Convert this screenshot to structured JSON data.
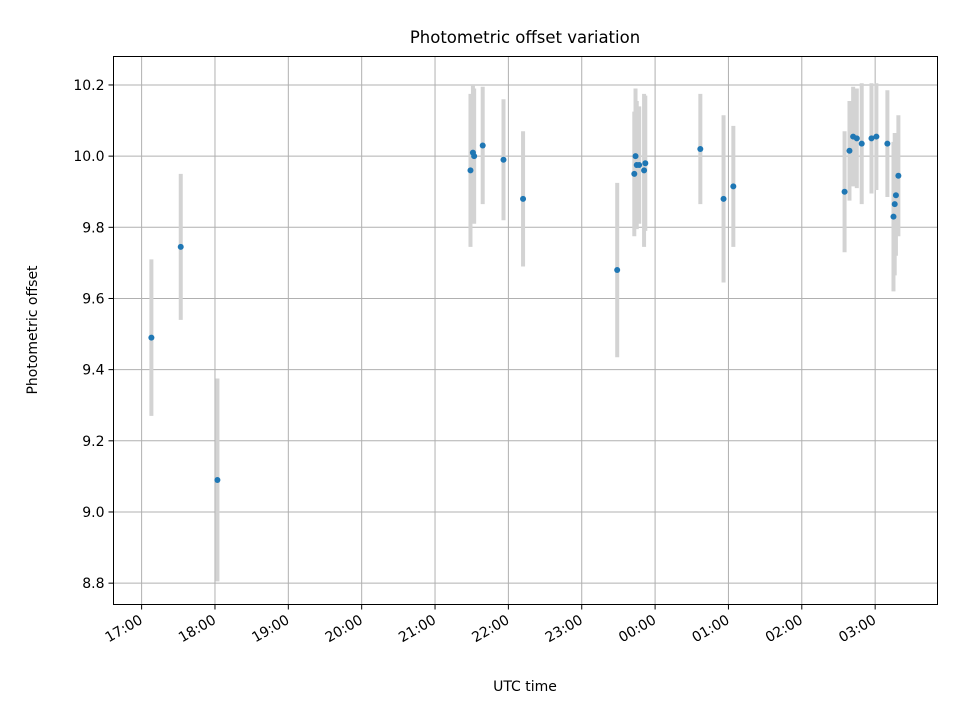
{
  "chart_data": {
    "type": "scatter",
    "title": "Photometric offset variation",
    "xlabel": "UTC time",
    "ylabel": "Photometric offset",
    "x_axis": {
      "type": "time",
      "range": [
        "16:37",
        "03:51"
      ],
      "ticks": [
        "17:00",
        "18:00",
        "19:00",
        "20:00",
        "21:00",
        "22:00",
        "23:00",
        "00:00",
        "01:00",
        "02:00",
        "03:00"
      ],
      "tick_label_rotation_deg": 30
    },
    "y_axis": {
      "range": [
        8.74,
        10.28
      ],
      "ticks": [
        "8.8",
        "9.0",
        "9.2",
        "9.4",
        "9.6",
        "9.8",
        "10.0",
        "10.2"
      ]
    },
    "grid": true,
    "legend": "none",
    "colors": {
      "point": "#1f77b4",
      "error_bar": "#d3d3d3",
      "grid": "#b0b0b0"
    },
    "points": [
      {
        "time": "17:08",
        "y": 9.49,
        "err": 0.22
      },
      {
        "time": "17:32",
        "y": 9.745,
        "err": 0.205
      },
      {
        "time": "18:02",
        "y": 9.09,
        "err": 0.285
      },
      {
        "time": "21:29",
        "y": 9.96,
        "err": 0.215
      },
      {
        "time": "21:31",
        "y": 10.01,
        "err": 0.19
      },
      {
        "time": "21:32",
        "y": 10.0,
        "err": 0.19
      },
      {
        "time": "21:39",
        "y": 10.03,
        "err": 0.165
      },
      {
        "time": "21:56",
        "y": 9.99,
        "err": 0.17
      },
      {
        "time": "22:12",
        "y": 9.88,
        "err": 0.19
      },
      {
        "time": "23:29",
        "y": 9.68,
        "err": 0.245
      },
      {
        "time": "23:43",
        "y": 9.95,
        "err": 0.175
      },
      {
        "time": "23:44",
        "y": 10.0,
        "err": 0.19
      },
      {
        "time": "23:45",
        "y": 9.975,
        "err": 0.18
      },
      {
        "time": "23:47",
        "y": 9.975,
        "err": 0.165
      },
      {
        "time": "23:51",
        "y": 9.96,
        "err": 0.215
      },
      {
        "time": "23:52",
        "y": 9.98,
        "err": 0.19
      },
      {
        "time": "00:37",
        "y": 10.02,
        "err": 0.155
      },
      {
        "time": "00:56",
        "y": 9.88,
        "err": 0.235
      },
      {
        "time": "01:04",
        "y": 9.915,
        "err": 0.17
      },
      {
        "time": "02:35",
        "y": 9.9,
        "err": 0.17
      },
      {
        "time": "02:39",
        "y": 10.015,
        "err": 0.14
      },
      {
        "time": "02:42",
        "y": 10.055,
        "err": 0.14
      },
      {
        "time": "02:45",
        "y": 10.05,
        "err": 0.14
      },
      {
        "time": "02:49",
        "y": 10.035,
        "err": 0.17
      },
      {
        "time": "02:57",
        "y": 10.05,
        "err": 0.155
      },
      {
        "time": "03:01",
        "y": 10.055,
        "err": 0.15
      },
      {
        "time": "03:10",
        "y": 10.035,
        "err": 0.15
      },
      {
        "time": "03:15",
        "y": 9.83,
        "err": 0.21
      },
      {
        "time": "03:16",
        "y": 9.865,
        "err": 0.2
      },
      {
        "time": "03:17",
        "y": 9.89,
        "err": 0.17
      },
      {
        "time": "03:19",
        "y": 9.945,
        "err": 0.17
      }
    ]
  }
}
